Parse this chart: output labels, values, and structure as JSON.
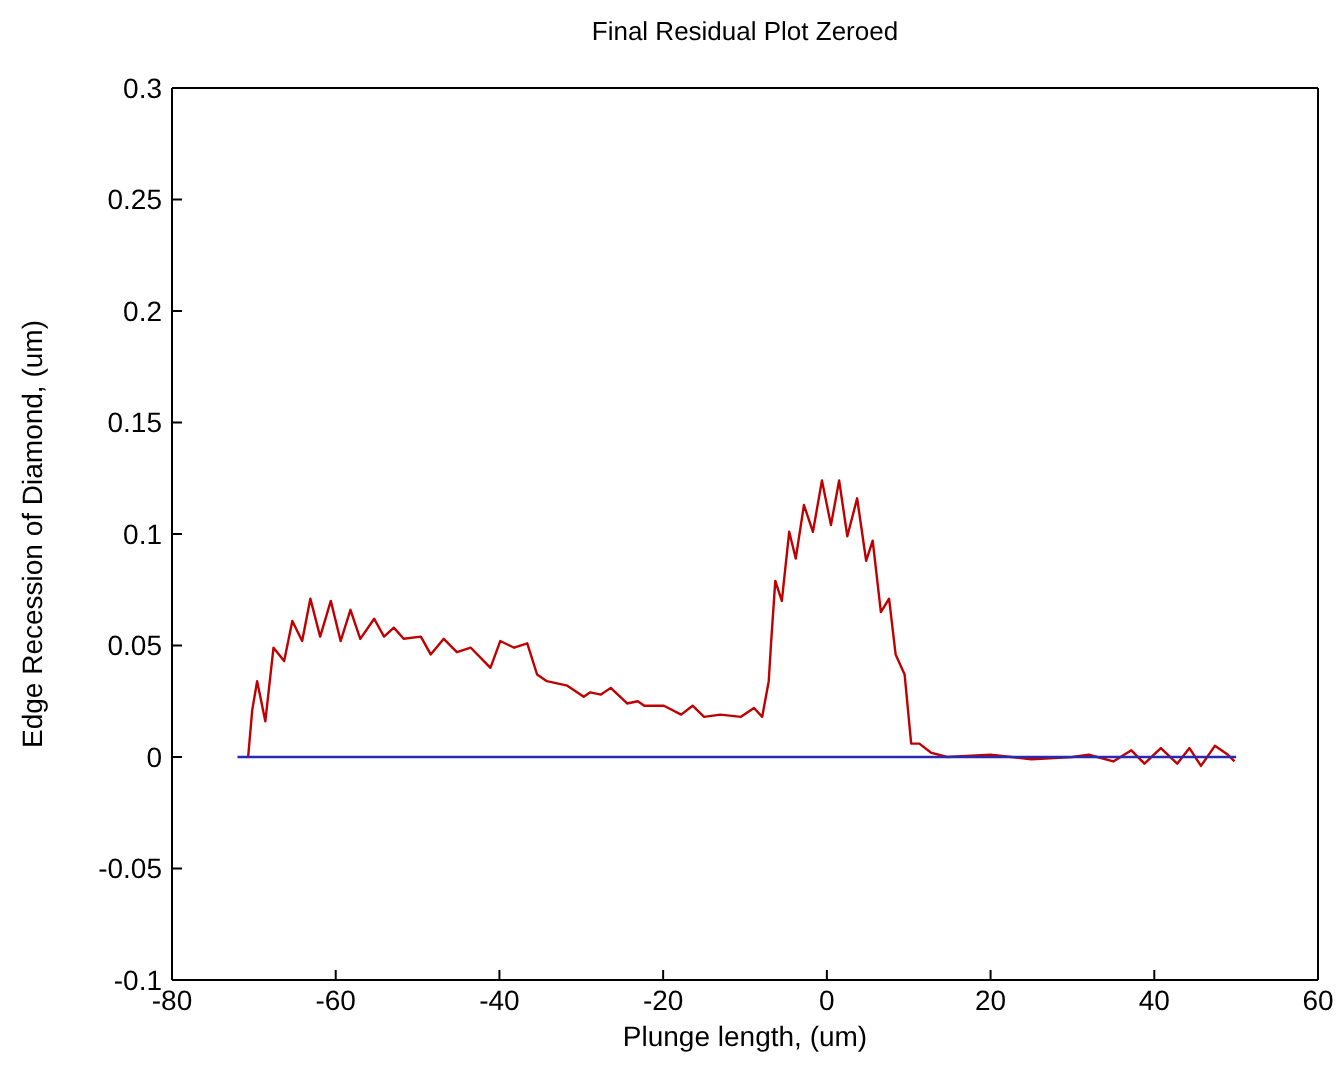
{
  "chart_data": {
    "type": "line",
    "title": "Final Residual Plot Zeroed",
    "xlabel": "Plunge length, (um)",
    "ylabel": "Edge Recession of Diamond, (um)",
    "xlim": [
      -80,
      60
    ],
    "xticks": [
      -80,
      -60,
      -40,
      -20,
      0,
      20,
      40,
      60
    ],
    "ylim": [
      -0.1,
      0.3
    ],
    "yticks": [
      -0.1,
      -0.05,
      0,
      0.05,
      0.1,
      0.15,
      0.2,
      0.25,
      0.3
    ],
    "marker": "none",
    "line_style": "solid",
    "series": [
      {
        "color": "#c00000",
        "x": [
          -70.7,
          -70.2,
          -69.6,
          -68.6,
          -67.6,
          -66.3,
          -65.3,
          -64.1,
          -63.1,
          -61.9,
          -60.6,
          -59.4,
          -58.2,
          -57.0,
          -55.3,
          -54.1,
          -52.9,
          -51.7,
          -49.6,
          -48.4,
          -46.8,
          -45.2,
          -43.5,
          -41.9,
          -41.1,
          -39.9,
          -38.2,
          -36.6,
          -35.4,
          -34.2,
          -31.7,
          -29.7,
          -28.9,
          -27.6,
          -26.4,
          -24.4,
          -23.1,
          -22.3,
          -19.9,
          -17.8,
          -16.4,
          -15.0,
          -13.0,
          -10.5,
          -8.9,
          -7.9,
          -7.1,
          -6.8,
          -6.3,
          -5.5,
          -4.6,
          -3.8,
          -2.8,
          -1.7,
          -0.6,
          0.5,
          1.5,
          2.5,
          3.7,
          4.8,
          5.6,
          6.6,
          7.6,
          8.4,
          9.5,
          10.3,
          11.3,
          12.7,
          14.7,
          20,
          25,
          30,
          32,
          35,
          37.2,
          38.8,
          40.8,
          42.8,
          44.3,
          45.7,
          47.4,
          49,
          49.8
        ],
        "values": [
          0,
          0.021,
          0.034,
          0.016,
          0.049,
          0.043,
          0.061,
          0.052,
          0.071,
          0.054,
          0.07,
          0.052,
          0.066,
          0.053,
          0.062,
          0.054,
          0.058,
          0.053,
          0.054,
          0.046,
          0.053,
          0.047,
          0.049,
          0.043,
          0.04,
          0.052,
          0.049,
          0.051,
          0.037,
          0.034,
          0.032,
          0.027,
          0.029,
          0.028,
          0.031,
          0.024,
          0.025,
          0.023,
          0.023,
          0.019,
          0.023,
          0.018,
          0.019,
          0.018,
          0.022,
          0.018,
          0.034,
          0.052,
          0.079,
          0.07,
          0.101,
          0.089,
          0.113,
          0.101,
          0.124,
          0.104,
          0.124,
          0.099,
          0.116,
          0.088,
          0.097,
          0.065,
          0.071,
          0.046,
          0.037,
          0.006,
          0.006,
          0.002,
          0,
          0.001,
          -0.001,
          0,
          0.001,
          -0.002,
          0.003,
          -0.003,
          0.004,
          -0.003,
          0.004,
          -0.004,
          0.005,
          0.001,
          -0.002
        ]
      },
      {
        "color": "#2a2ab0",
        "x": [
          -72,
          50
        ],
        "values": [
          0,
          0
        ]
      }
    ]
  }
}
